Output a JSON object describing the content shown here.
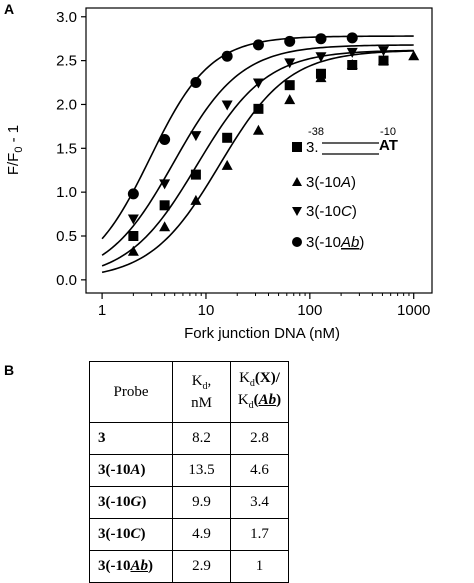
{
  "panel_a_label": "A",
  "panel_b_label": "B",
  "chart_data": {
    "type": "scatter",
    "xlabel": "Fork junction DNA (nM)",
    "ylabel_parts": {
      "main": "F/F",
      "sub": "0",
      "tail": " - 1"
    },
    "x_scale": "log",
    "xlim": [
      0.7,
      1500
    ],
    "ylim": [
      -0.15,
      3.1
    ],
    "x_ticks": [
      1,
      10,
      100,
      1000
    ],
    "x_tick_labels": [
      "1",
      "10",
      "100",
      "1000"
    ],
    "y_ticks": [
      0.0,
      0.5,
      1.0,
      1.5,
      2.0,
      2.5,
      3.0
    ],
    "y_tick_labels": [
      "0.0",
      "0.5",
      "1.0",
      "1.5",
      "2.0",
      "2.5",
      "3.0"
    ],
    "series": [
      {
        "name": "3.",
        "marker": "square",
        "x": [
          2,
          4,
          8,
          16,
          32,
          64,
          128,
          256,
          512
        ],
        "y": [
          0.5,
          0.85,
          1.2,
          1.62,
          1.95,
          2.22,
          2.35,
          2.45,
          2.5
        ],
        "fit": {
          "top": 2.62,
          "kd": 8.2,
          "n": 1.3,
          "base": 0.0
        }
      },
      {
        "name": "3(-10A)",
        "marker": "triangle-up",
        "x": [
          2,
          4,
          8,
          16,
          32,
          64,
          128,
          256,
          512,
          1000
        ],
        "y": [
          0.32,
          0.6,
          0.9,
          1.3,
          1.7,
          2.05,
          2.3,
          2.45,
          2.5,
          2.55
        ],
        "fit": {
          "top": 2.62,
          "kd": 13.5,
          "n": 1.3,
          "base": 0.0
        }
      },
      {
        "name": "3(-10C)",
        "marker": "triangle-down",
        "x": [
          2,
          4,
          8,
          16,
          32,
          64,
          128,
          256,
          512
        ],
        "y": [
          0.7,
          1.1,
          1.65,
          2.0,
          2.25,
          2.48,
          2.55,
          2.6,
          2.62
        ],
        "fit": {
          "top": 2.68,
          "kd": 4.9,
          "n": 1.35,
          "base": 0.0
        }
      },
      {
        "name": "3(-10Ab)",
        "marker": "circle",
        "x": [
          2,
          4,
          8,
          16,
          32,
          64,
          128,
          256
        ],
        "y": [
          0.98,
          1.6,
          2.25,
          2.55,
          2.68,
          2.72,
          2.75,
          2.76
        ],
        "fit": {
          "top": 2.78,
          "kd": 2.9,
          "n": 1.5,
          "base": 0.0
        }
      }
    ]
  },
  "legend": {
    "entries": [
      {
        "prefix": "3.",
        "paren_open": "",
        "italic": "",
        "underline": "",
        "close": ""
      },
      {
        "prefix": "3(-10",
        "italic": "A",
        "close": ")"
      },
      {
        "prefix": "3(-10",
        "italic": "C",
        "close": ")"
      },
      {
        "prefix": "3(-10",
        "italic_underlined": "Ab",
        "close": ")"
      }
    ],
    "schematic": {
      "left_num": "-38",
      "right_num": "-10",
      "end_text": "AT"
    }
  },
  "table": {
    "headers": {
      "probe": "Probe",
      "kd_line1_main": "K",
      "kd_line1_sub": "d",
      "kd_line1_tail": ",",
      "kd_line2": "nM",
      "ratio_top_k": "K",
      "ratio_top_sub": "d",
      "ratio_top_paren": "(X)/",
      "ratio_bottom_k": "K",
      "ratio_bottom_sub": "d",
      "ratio_bottom_open": "(",
      "ratio_bottom_ital": "Ab",
      "ratio_bottom_close": ")"
    },
    "rows": [
      {
        "probe_pre": "3",
        "probe_ital": "",
        "probe_post": "",
        "kd": "8.2",
        "ratio": "2.8",
        "underline": false
      },
      {
        "probe_pre": "3(-10",
        "probe_ital": "A",
        "probe_post": ")",
        "kd": "13.5",
        "ratio": "4.6",
        "underline": false
      },
      {
        "probe_pre": "3(-10",
        "probe_ital": "G",
        "probe_post": ")",
        "kd": "9.9",
        "ratio": "3.4",
        "underline": false
      },
      {
        "probe_pre": "3(-10",
        "probe_ital": "C",
        "probe_post": ")",
        "kd": "4.9",
        "ratio": "1.7",
        "underline": false
      },
      {
        "probe_pre": "3(-10",
        "probe_ital": "Ab",
        "probe_post": ")",
        "kd": "2.9",
        "ratio": "1",
        "underline": true
      }
    ]
  }
}
